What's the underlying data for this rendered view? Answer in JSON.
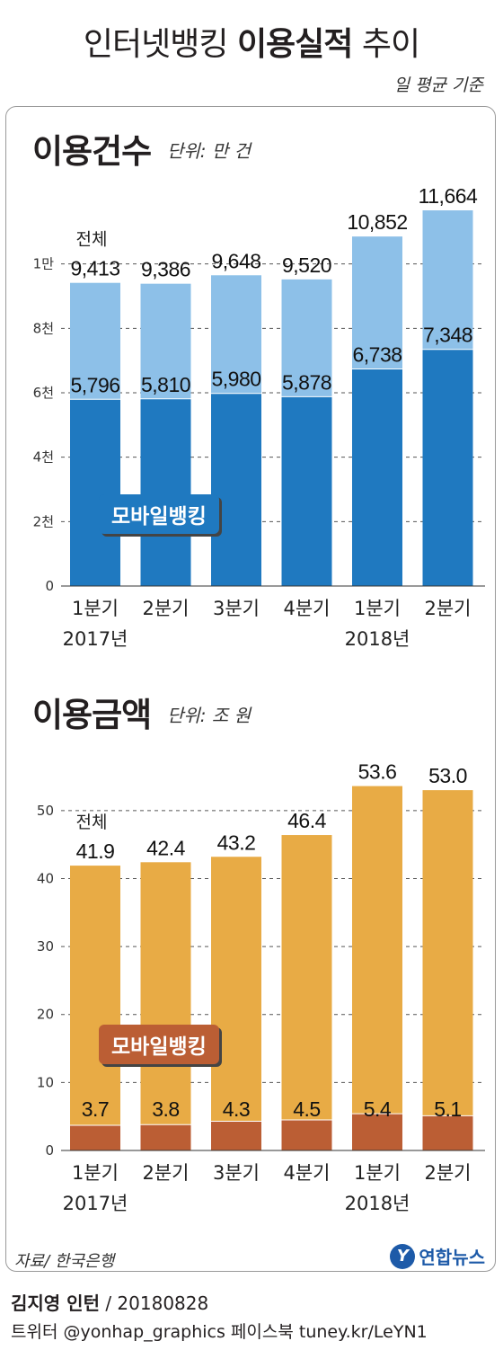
{
  "header": {
    "title_light_1": "인터넷뱅킹 ",
    "title_bold": "이용실적",
    "title_light_2": " 추이",
    "basis": "일 평균 기준"
  },
  "sections": {
    "count": {
      "title": "이용건수",
      "unit": "단위: 만 건",
      "color": "#1d5a8e"
    },
    "amount": {
      "title": "이용금액",
      "unit": "단위: 조 원",
      "color": "#c0622c"
    }
  },
  "footer": {
    "source": "자료/ 한국은행",
    "logo_mark": "Y",
    "logo_text": "연합뉴스",
    "author_name": "김지영 인턴",
    "author_date": " / 20180828",
    "social": "트위터 @yonhap_graphics  페이스북 tuney.kr/LeYN1"
  },
  "chart_data": [
    {
      "type": "bar",
      "title": "이용건수",
      "unit": "단위: 만 건",
      "categories": [
        "1분기",
        "2분기",
        "3분기",
        "4분기",
        "1분기",
        "2분기"
      ],
      "years": [
        {
          "label": "2017년",
          "under": 0
        },
        {
          "label": "2018년",
          "under": 4
        }
      ],
      "y_ticks": [
        {
          "v": 0,
          "label": "0"
        },
        {
          "v": 2000,
          "label": "2천"
        },
        {
          "v": 4000,
          "label": "4천"
        },
        {
          "v": 6000,
          "label": "6천"
        },
        {
          "v": 8000,
          "label": "8천"
        },
        {
          "v": 10000,
          "label": "1만"
        }
      ],
      "ylim": [
        0,
        12000
      ],
      "total_label": "전체",
      "mobile_label": "모바일뱅킹",
      "series": [
        {
          "name": "전체",
          "values": [
            9413,
            9386,
            9648,
            9520,
            10852,
            11664
          ],
          "color": "#8dc0e8"
        },
        {
          "name": "모바일뱅킹",
          "values": [
            5796,
            5810,
            5980,
            5878,
            6738,
            7348
          ],
          "color": "#1f79c0"
        }
      ],
      "grid": "dashed"
    },
    {
      "type": "bar",
      "title": "이용금액",
      "unit": "단위: 조 원",
      "categories": [
        "1분기",
        "2분기",
        "3분기",
        "4분기",
        "1분기",
        "2분기"
      ],
      "years": [
        {
          "label": "2017년",
          "under": 0
        },
        {
          "label": "2018년",
          "under": 4
        }
      ],
      "y_ticks": [
        {
          "v": 0,
          "label": "0"
        },
        {
          "v": 10,
          "label": "10"
        },
        {
          "v": 20,
          "label": "20"
        },
        {
          "v": 30,
          "label": "30"
        },
        {
          "v": 40,
          "label": "40"
        },
        {
          "v": 50,
          "label": "50"
        }
      ],
      "ylim": [
        0,
        55
      ],
      "total_label": "전체",
      "mobile_label": "모바일뱅킹",
      "series": [
        {
          "name": "전체",
          "values": [
            41.9,
            42.4,
            43.2,
            46.4,
            53.6,
            53.0
          ],
          "color": "#e8ab45"
        },
        {
          "name": "모바일뱅킹",
          "values": [
            3.7,
            3.8,
            4.3,
            4.5,
            5.4,
            5.1
          ],
          "color": "#bb5e34"
        }
      ],
      "grid": "dashed"
    }
  ]
}
